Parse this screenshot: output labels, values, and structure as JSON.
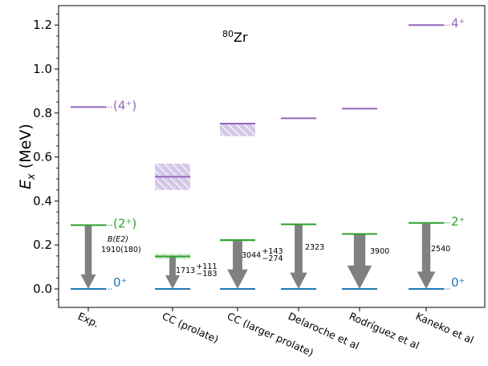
{
  "chart_data": {
    "type": "level-scheme",
    "title": "80Zr",
    "title_mass": "80",
    "title_element": "Zr",
    "ylabel_main": "E",
    "ylabel_sub": "x",
    "ylabel_unit": " (MeV)",
    "ylim": [
      -0.08,
      1.28
    ],
    "yticks": [
      "0.0",
      "0.2",
      "0.4",
      "0.6",
      "0.8",
      "1.0",
      "1.2"
    ],
    "colors": {
      "level_0": "#1f77b4",
      "level_2": "#2ca02c",
      "level_4": "#9467bd",
      "arrow": "#808080",
      "hatch_green": "#9bd39b",
      "hatch_purple": "#c5b5df"
    },
    "categories": [
      "Exp.",
      "CC (prolate)",
      "CC (larger prolate)",
      "Delaroche et al",
      "Rodríguez et al",
      "Kaneko et al"
    ],
    "levels": [
      {
        "category": "Exp.",
        "e0": 0.0,
        "e2": 0.29,
        "e4": 0.827
      },
      {
        "category": "CC (prolate)",
        "e0": 0.0,
        "e2": 0.148,
        "e2_band": [
          0.135,
          0.16
        ],
        "e4": 0.51,
        "e4_band": [
          0.45,
          0.57
        ]
      },
      {
        "category": "CC (larger prolate)",
        "e0": 0.0,
        "e2": 0.222,
        "e2_band": [
          0.215,
          0.225
        ],
        "e4": 0.752,
        "e4_band": [
          0.695,
          0.752
        ]
      },
      {
        "category": "Delaroche et al",
        "e0": 0.0,
        "e2": 0.294,
        "e4": 0.776
      },
      {
        "category": "Rodríguez et al",
        "e0": 0.0,
        "e2": 0.25,
        "e4": 0.82
      },
      {
        "category": "Kaneko et al",
        "e0": 0.0,
        "e2": 0.3,
        "e4": 1.2
      }
    ],
    "spin_labels": [
      {
        "category": "Exp.",
        "level": "0",
        "text": "0⁺"
      },
      {
        "category": "Exp.",
        "level": "2",
        "text": "(2⁺)"
      },
      {
        "category": "Exp.",
        "level": "4",
        "text": "(4⁺)"
      },
      {
        "category": "Kaneko et al",
        "level": "0",
        "text": "0⁺"
      },
      {
        "category": "Kaneko et al",
        "level": "2",
        "text": "2⁺"
      },
      {
        "category": "Kaneko et al",
        "level": "4",
        "text": "4⁺"
      }
    ],
    "be2": [
      {
        "category": "Exp.",
        "value": 1910,
        "line1": "B(E2)",
        "line2": "1910(180)"
      },
      {
        "category": "CC (prolate)",
        "value": 1713,
        "main": "1713",
        "sup": "+111",
        "sub": "−183"
      },
      {
        "category": "CC (larger prolate)",
        "value": 3044,
        "main": "3044",
        "sup": "+143",
        "sub": "−274"
      },
      {
        "category": "Delaroche et al",
        "value": 2323,
        "main": "2323"
      },
      {
        "category": "Rodríguez et al",
        "value": 3900,
        "main": "3900"
      },
      {
        "category": "Kaneko et al",
        "value": 2540,
        "main": "2540"
      }
    ]
  }
}
